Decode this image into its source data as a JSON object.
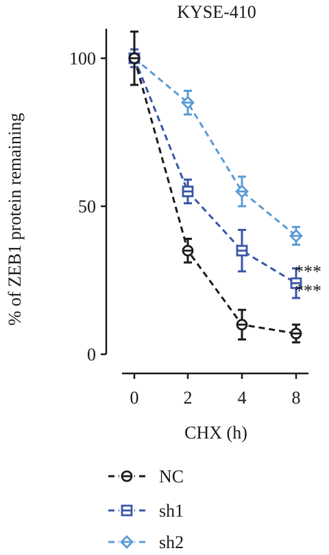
{
  "chart_data": {
    "type": "line",
    "title": "KYSE-410",
    "xlabel": "CHX (h)",
    "ylabel": "% of ZEB1 protein remaining",
    "x": [
      "0",
      "2",
      "4",
      "8"
    ],
    "xticks": [
      "0",
      "2",
      "4",
      "8"
    ],
    "yticks": [
      0,
      50,
      100
    ],
    "ylim": [
      0,
      110
    ],
    "grid": false,
    "legend_position": "bottom",
    "series": [
      {
        "name": "NC",
        "color": "#1a1a1a",
        "marker": "circle-minus",
        "values": [
          100,
          35,
          10,
          7
        ],
        "errors": [
          9,
          4,
          5,
          3
        ]
      },
      {
        "name": "sh1",
        "color": "#3a55a8",
        "marker": "square-minus",
        "values": [
          100,
          55,
          35,
          24
        ],
        "errors": [
          3,
          4,
          7,
          5
        ]
      },
      {
        "name": "sh2",
        "color": "#5b9bd5",
        "marker": "diamond-minus",
        "values": [
          100,
          85,
          55,
          40
        ],
        "errors": [
          3,
          4,
          5,
          3
        ]
      }
    ],
    "annotations": [
      "***",
      "***"
    ]
  }
}
